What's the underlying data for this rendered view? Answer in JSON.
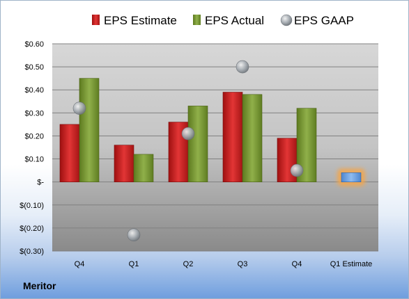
{
  "company": "Meritor",
  "colors": {
    "estimate": "#cc1f1f",
    "actual": "#7a9a2e",
    "gaap": "#9aa0a8",
    "q1_estimate_fill": "#6fa3e0",
    "q1_estimate_glow": "#f5a64a"
  },
  "chart_data": {
    "type": "bar",
    "categories": [
      "Q4",
      "Q1",
      "Q2",
      "Q3",
      "Q4",
      "Q1 Estimate"
    ],
    "series": [
      {
        "name": "EPS Estimate",
        "values": [
          0.25,
          0.16,
          0.26,
          0.39,
          0.19,
          null
        ]
      },
      {
        "name": "EPS Actual",
        "values": [
          0.45,
          0.12,
          0.33,
          0.38,
          0.32,
          null
        ]
      },
      {
        "name": "EPS GAAP",
        "values": [
          0.32,
          -0.23,
          0.21,
          0.5,
          0.05,
          null
        ]
      }
    ],
    "highlight_estimate": {
      "category": "Q1 Estimate",
      "value": 0.04
    },
    "y_ticks": [
      {
        "value": 0.6,
        "label": "$0.60"
      },
      {
        "value": 0.5,
        "label": "$0.50"
      },
      {
        "value": 0.4,
        "label": "$0.40"
      },
      {
        "value": 0.3,
        "label": "$0.30"
      },
      {
        "value": 0.2,
        "label": "$0.20"
      },
      {
        "value": 0.1,
        "label": "$0.10"
      },
      {
        "value": 0,
        "label": "$-"
      },
      {
        "value": -0.1,
        "label": "$(0.10)"
      },
      {
        "value": -0.2,
        "label": "$(0.20)"
      },
      {
        "value": -0.3,
        "label": "$(0.30)"
      }
    ],
    "ylim": [
      -0.3,
      0.6
    ],
    "legend_position": "top",
    "grid": true
  }
}
